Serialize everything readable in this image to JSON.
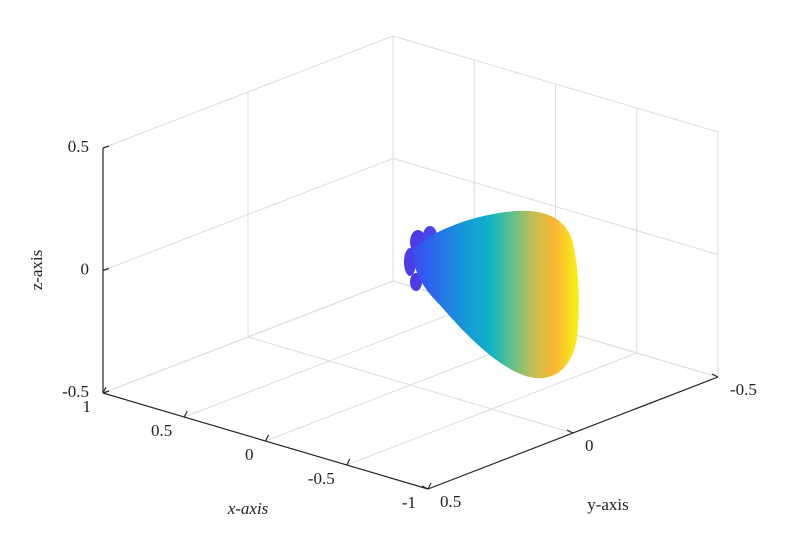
{
  "chart_data": {
    "type": "surface3d",
    "xlabel": "x-axis",
    "ylabel": "y-axis",
    "zlabel": "z-axis",
    "xlim": [
      -1,
      1
    ],
    "ylim": [
      -0.5,
      0.5
    ],
    "zlim": [
      -0.5,
      0.5
    ],
    "xticks": [
      1,
      0.5,
      0,
      -0.5,
      -1
    ],
    "yticks": [
      0.5,
      0,
      -0.5
    ],
    "zticks": [
      -0.5,
      0,
      0.5
    ],
    "grid": true
  }
}
